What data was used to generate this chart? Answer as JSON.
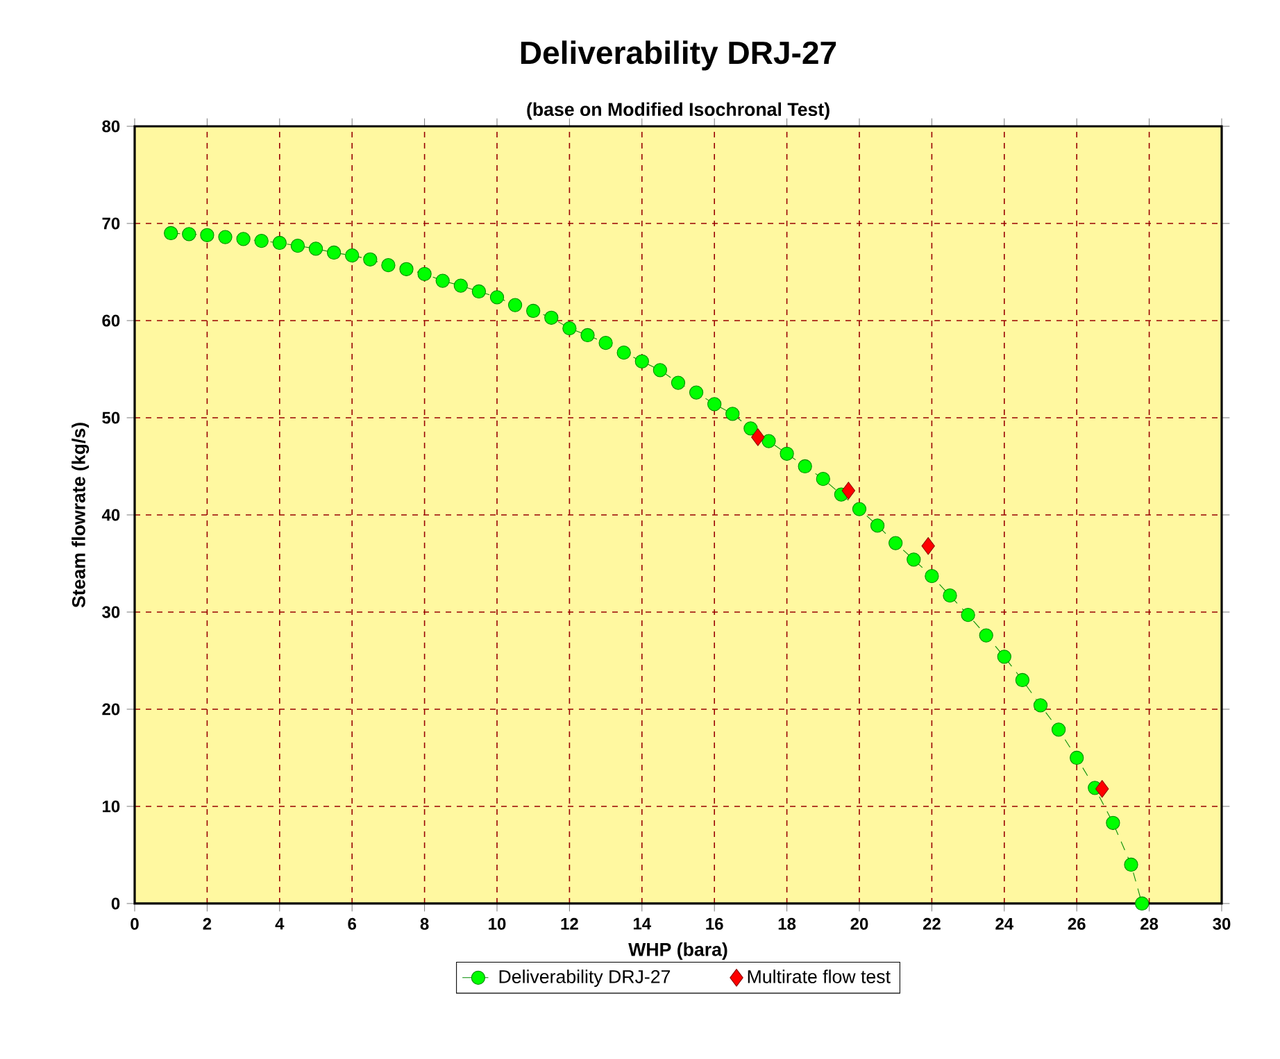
{
  "chart_data": {
    "type": "line",
    "title": "Deliverability DRJ-27",
    "subtitle": "(base on Modified Isochronal Test)",
    "xlabel": "WHP (bara)",
    "ylabel": "Steam flowrate (kg/s)",
    "xlim": [
      0,
      30
    ],
    "ylim": [
      0,
      80
    ],
    "xticks": [
      0,
      2,
      4,
      6,
      8,
      10,
      12,
      14,
      16,
      18,
      20,
      22,
      24,
      26,
      28,
      30
    ],
    "yticks": [
      0,
      10,
      20,
      30,
      40,
      50,
      60,
      70,
      80
    ],
    "grid": true,
    "legend": "bottom",
    "series": [
      {
        "name": "Deliverability DRJ-27",
        "color": "#00ff00",
        "marker": "circle",
        "line_style": "dashed",
        "x": [
          1,
          1.5,
          2,
          2.5,
          3,
          3.5,
          4,
          4.5,
          5,
          5.5,
          6,
          6.5,
          7,
          7.5,
          8,
          8.5,
          9,
          9.5,
          10,
          10.5,
          11,
          11.5,
          12,
          12.5,
          13,
          13.5,
          14,
          14.5,
          15,
          15.5,
          16,
          16.5,
          17,
          17.5,
          18,
          18.5,
          19,
          19.5,
          20,
          20.5,
          21,
          21.5,
          22,
          22.5,
          23,
          23.5,
          24,
          24.5,
          25,
          25.5,
          26,
          26.5,
          27,
          27.5,
          27.8
        ],
        "values": [
          69.0,
          68.9,
          68.8,
          68.6,
          68.4,
          68.2,
          68.0,
          67.7,
          67.4,
          67.0,
          66.7,
          66.3,
          65.7,
          65.3,
          64.8,
          64.1,
          63.6,
          63.0,
          62.4,
          61.6,
          61.0,
          60.3,
          59.2,
          58.5,
          57.7,
          56.7,
          55.8,
          54.9,
          53.6,
          52.6,
          51.4,
          50.4,
          48.9,
          47.6,
          46.3,
          45.0,
          43.7,
          42.1,
          40.6,
          38.9,
          37.1,
          35.4,
          33.7,
          31.7,
          29.7,
          27.6,
          25.4,
          23.0,
          20.4,
          17.9,
          15.0,
          11.9,
          8.3,
          4.0,
          0
        ]
      },
      {
        "name": "Multirate flow test",
        "type": "scatter",
        "color": "#ff0000",
        "marker": "diamond",
        "x": [
          17.2,
          19.7,
          21.9,
          26.7
        ],
        "values": [
          48.0,
          42.5,
          36.8,
          11.8
        ]
      }
    ]
  }
}
